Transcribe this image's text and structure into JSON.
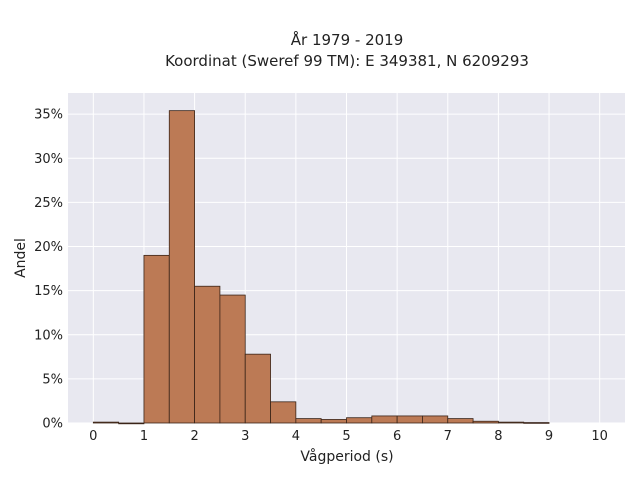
{
  "chart_data": {
    "type": "bar",
    "title_line1": "År 1979 - 2019",
    "title_line2": "Koordinat (Sweref 99 TM): E 349381, N 6209293",
    "xlabel": "Vågperiod (s)",
    "ylabel": "Andel",
    "bin_width": 0.5,
    "bins": [
      {
        "start": 0.0,
        "value": 0.1
      },
      {
        "start": 0.5,
        "value": 0.0
      },
      {
        "start": 1.0,
        "value": 19.0
      },
      {
        "start": 1.5,
        "value": 35.4
      },
      {
        "start": 2.0,
        "value": 15.5
      },
      {
        "start": 2.5,
        "value": 14.5
      },
      {
        "start": 3.0,
        "value": 7.8
      },
      {
        "start": 3.5,
        "value": 2.4
      },
      {
        "start": 4.0,
        "value": 0.5
      },
      {
        "start": 4.5,
        "value": 0.4
      },
      {
        "start": 5.0,
        "value": 0.6
      },
      {
        "start": 5.5,
        "value": 0.8
      },
      {
        "start": 6.0,
        "value": 0.8
      },
      {
        "start": 6.5,
        "value": 0.8
      },
      {
        "start": 7.0,
        "value": 0.5
      },
      {
        "start": 7.5,
        "value": 0.2
      },
      {
        "start": 8.0,
        "value": 0.1
      },
      {
        "start": 8.5,
        "value": 0.05
      }
    ],
    "xlim": [
      -0.5,
      10.5
    ],
    "ylim": [
      0,
      37.4
    ],
    "xticks": [
      0,
      1,
      2,
      3,
      4,
      5,
      6,
      7,
      8,
      9,
      10
    ],
    "xtick_labels": [
      "0",
      "1",
      "2",
      "3",
      "4",
      "5",
      "6",
      "7",
      "8",
      "9",
      "10"
    ],
    "yticks": [
      0,
      5,
      10,
      15,
      20,
      25,
      30,
      35
    ],
    "ytick_labels": [
      "0%",
      "5%",
      "10%",
      "15%",
      "20%",
      "25%",
      "30%",
      "35%"
    ],
    "grid": true,
    "colors": {
      "bar_fill": "#bc7a55",
      "bar_edge": "#3a2418",
      "plot_background": "#e8e8f0",
      "grid": "#ffffff"
    }
  }
}
